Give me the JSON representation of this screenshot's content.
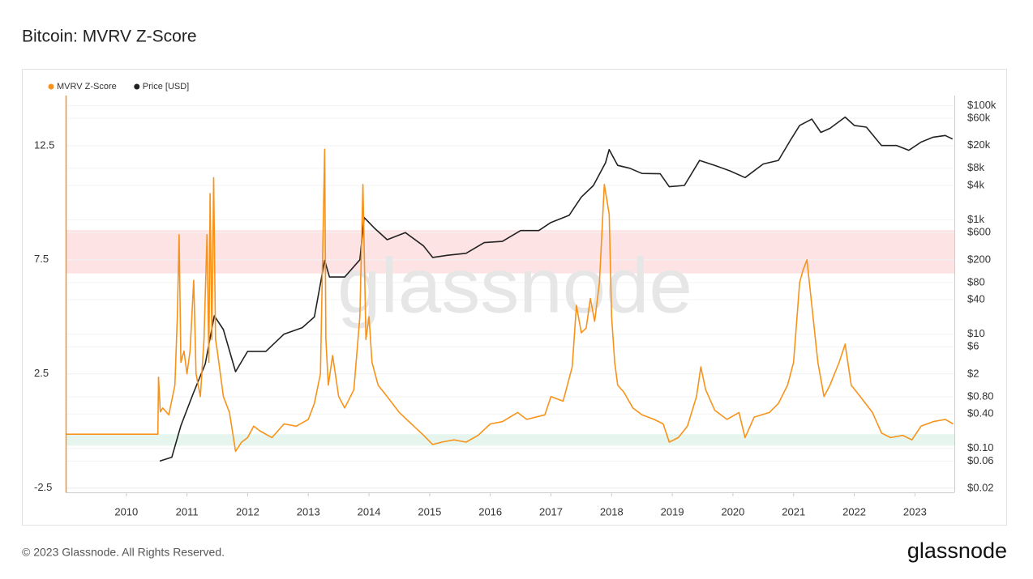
{
  "chart_data": {
    "type": "line",
    "title": "Bitcoin: MVRV Z-Score",
    "watermark": "glassnode",
    "footer": "© 2023 Glassnode. All Rights Reserved.",
    "logo": "glassnode",
    "xlim": [
      2009.0,
      2023.65
    ],
    "xticks": [
      2010,
      2011,
      2012,
      2013,
      2014,
      2015,
      2016,
      2017,
      2018,
      2019,
      2020,
      2021,
      2022,
      2023
    ],
    "ylim": [
      -2.7,
      14.7
    ],
    "yticks": [
      12.5,
      7.5,
      2.5,
      -2.5
    ],
    "y2lim": [
      0.017,
      150000
    ],
    "y2log": true,
    "y2ticks": [
      {
        "value": 100000,
        "label": "$100k"
      },
      {
        "value": 60000,
        "label": "$60k"
      },
      {
        "value": 20000,
        "label": "$20k"
      },
      {
        "value": 8000,
        "label": "$8k"
      },
      {
        "value": 4000,
        "label": "$4k"
      },
      {
        "value": 1000,
        "label": "$1k"
      },
      {
        "value": 600,
        "label": "$600"
      },
      {
        "value": 200,
        "label": "$200"
      },
      {
        "value": 80,
        "label": "$80"
      },
      {
        "value": 40,
        "label": "$40"
      },
      {
        "value": 10,
        "label": "$10"
      },
      {
        "value": 6,
        "label": "$6"
      },
      {
        "value": 2,
        "label": "$2"
      },
      {
        "value": 0.8,
        "label": "$0.80"
      },
      {
        "value": 0.4,
        "label": "$0.40"
      },
      {
        "value": 0.1,
        "label": "$0.10"
      },
      {
        "value": 0.06,
        "label": "$0.06"
      },
      {
        "value": 0.02,
        "label": "$0.02"
      }
    ],
    "grid": true,
    "legend": "top-left",
    "bands": [
      {
        "from": 6.9,
        "to": 8.8,
        "color": "#fde3e3"
      },
      {
        "from": -0.65,
        "to": -0.15,
        "color": "#e6f6ee"
      }
    ],
    "series": [
      {
        "name": "MVRV Z-Score",
        "color": "#f7931a",
        "axis": "y",
        "x": [
          2009.0,
          2010.52,
          2010.53,
          2010.56,
          2010.6,
          2010.7,
          2010.8,
          2010.84,
          2010.87,
          2010.9,
          2010.95,
          2011.0,
          2011.05,
          2011.11,
          2011.15,
          2011.22,
          2011.28,
          2011.33,
          2011.36,
          2011.38,
          2011.41,
          2011.44,
          2011.47,
          2011.5,
          2011.6,
          2011.7,
          2011.8,
          2011.9,
          2012.0,
          2012.1,
          2012.2,
          2012.4,
          2012.6,
          2012.8,
          2013.0,
          2013.1,
          2013.2,
          2013.27,
          2013.29,
          2013.33,
          2013.4,
          2013.5,
          2013.6,
          2013.75,
          2013.85,
          2013.9,
          2013.95,
          2014.0,
          2014.05,
          2014.15,
          2014.3,
          2014.5,
          2014.7,
          2014.9,
          2015.05,
          2015.2,
          2015.4,
          2015.6,
          2015.8,
          2016.0,
          2016.2,
          2016.45,
          2016.6,
          2016.9,
          2017.0,
          2017.2,
          2017.35,
          2017.42,
          2017.5,
          2017.58,
          2017.65,
          2017.72,
          2017.8,
          2017.88,
          2017.96,
          2018.0,
          2018.05,
          2018.1,
          2018.2,
          2018.35,
          2018.5,
          2018.7,
          2018.85,
          2018.95,
          2019.1,
          2019.25,
          2019.4,
          2019.47,
          2019.55,
          2019.7,
          2019.9,
          2020.1,
          2020.2,
          2020.35,
          2020.6,
          2020.75,
          2020.9,
          2021.0,
          2021.1,
          2021.15,
          2021.22,
          2021.3,
          2021.4,
          2021.5,
          2021.6,
          2021.75,
          2021.85,
          2021.95,
          2022.1,
          2022.3,
          2022.45,
          2022.6,
          2022.8,
          2022.95,
          2023.1,
          2023.3,
          2023.5,
          2023.63
        ],
        "values": [
          -0.15,
          -0.15,
          2.35,
          0.83,
          1.0,
          0.7,
          2.0,
          5.0,
          8.6,
          3.0,
          3.5,
          2.5,
          3.5,
          6.6,
          2.5,
          1.5,
          4.0,
          8.6,
          3.0,
          10.4,
          4.0,
          11.1,
          4.0,
          3.5,
          1.5,
          0.8,
          -0.9,
          -0.5,
          -0.3,
          0.2,
          0.0,
          -0.3,
          0.3,
          0.2,
          0.5,
          1.2,
          2.5,
          12.35,
          4.0,
          2.0,
          3.3,
          1.5,
          1.0,
          1.8,
          5.0,
          10.8,
          4.0,
          5.0,
          3.0,
          2.0,
          1.5,
          0.8,
          0.3,
          -0.2,
          -0.6,
          -0.5,
          -0.4,
          -0.5,
          -0.2,
          0.3,
          0.4,
          0.8,
          0.5,
          0.7,
          1.5,
          1.3,
          2.8,
          5.5,
          4.3,
          4.5,
          5.8,
          4.8,
          6.5,
          10.8,
          9.5,
          5.0,
          3.0,
          2.0,
          1.7,
          1.0,
          0.7,
          0.5,
          0.3,
          -0.5,
          -0.3,
          0.2,
          1.5,
          2.8,
          1.8,
          0.9,
          0.5,
          0.8,
          -0.3,
          0.6,
          0.8,
          1.2,
          2.0,
          3.0,
          6.5,
          7.0,
          7.5,
          5.5,
          3.0,
          1.5,
          2.0,
          3.0,
          3.8,
          2.0,
          1.5,
          0.8,
          -0.1,
          -0.3,
          -0.2,
          -0.4,
          0.2,
          0.4,
          0.5,
          0.3
        ]
      },
      {
        "name": "Price [USD]",
        "color": "#222222",
        "axis": "y2",
        "x": [
          2010.55,
          2010.75,
          2010.9,
          2011.1,
          2011.3,
          2011.45,
          2011.6,
          2011.8,
          2012.0,
          2012.3,
          2012.6,
          2012.9,
          2013.1,
          2013.27,
          2013.35,
          2013.6,
          2013.85,
          2013.92,
          2014.1,
          2014.3,
          2014.6,
          2014.9,
          2015.05,
          2015.3,
          2015.6,
          2015.9,
          2016.2,
          2016.5,
          2016.8,
          2017.0,
          2017.3,
          2017.5,
          2017.7,
          2017.9,
          2017.96,
          2018.1,
          2018.3,
          2018.5,
          2018.8,
          2018.95,
          2019.2,
          2019.45,
          2019.7,
          2019.95,
          2020.2,
          2020.5,
          2020.75,
          2020.95,
          2021.1,
          2021.3,
          2021.45,
          2021.6,
          2021.85,
          2022.0,
          2022.2,
          2022.45,
          2022.7,
          2022.9,
          2023.1,
          2023.3,
          2023.5,
          2023.62
        ],
        "values": [
          0.06,
          0.07,
          0.25,
          0.9,
          3,
          21,
          12,
          2.2,
          5,
          5,
          10,
          13,
          20,
          195,
          100,
          100,
          200,
          1100,
          700,
          450,
          600,
          350,
          220,
          240,
          260,
          400,
          420,
          650,
          650,
          900,
          1200,
          2500,
          4000,
          10000,
          17000,
          9000,
          8000,
          6500,
          6400,
          3800,
          4000,
          11000,
          9000,
          7200,
          5500,
          9500,
          11000,
          25000,
          45000,
          58000,
          34000,
          40000,
          63000,
          45000,
          42000,
          20000,
          20000,
          16500,
          23000,
          28000,
          30000,
          26000
        ]
      }
    ]
  }
}
